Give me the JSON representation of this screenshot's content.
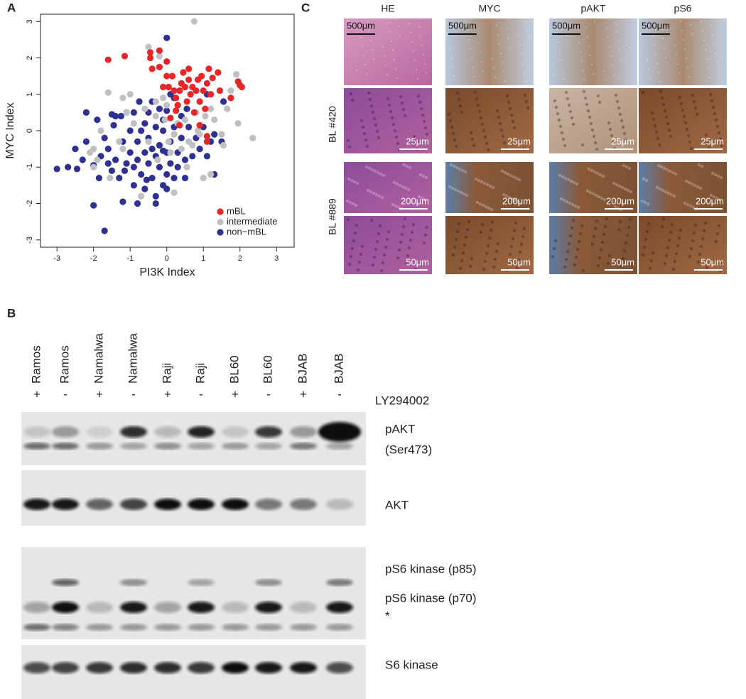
{
  "panel_labels": [
    "A",
    "B",
    "C"
  ],
  "chart_data": {
    "type": "scatter",
    "xlabel": "PI3K Index",
    "ylabel": "MYC Index",
    "xlim": [
      -3.45,
      3.48
    ],
    "ylim": [
      -3.2,
      3.2
    ],
    "xticks": [
      -3,
      -2,
      -1,
      0,
      1,
      2,
      3
    ],
    "yticks": [
      -3,
      -2,
      -1,
      0,
      1,
      2,
      3
    ],
    "legend": "lower-right",
    "series": [
      {
        "name": "mBL",
        "color": "#e8262a",
        "x": [
          -1.6,
          -1.15,
          -0.45,
          -0.4,
          -0.45,
          -0.2,
          -0.2,
          0.0,
          0.0,
          0.05,
          0.15,
          0.2,
          0.25,
          0.3,
          0.35,
          0.4,
          0.45,
          0.5,
          0.55,
          0.6,
          0.6,
          0.65,
          0.7,
          0.75,
          0.8,
          0.85,
          0.9,
          0.95,
          1.0,
          1.05,
          1.1,
          1.15,
          1.2,
          1.25,
          1.4,
          1.45,
          1.75,
          1.95,
          2.0,
          2.05,
          0.25,
          0.1,
          1.1,
          1.1,
          0.9,
          0.35,
          -0.1
        ],
        "values": [
          1.95,
          2.05,
          2.15,
          1.7,
          2.0,
          2.2,
          1.75,
          1.9,
          1.5,
          1.2,
          1.5,
          1.1,
          0.9,
          0.7,
          1.1,
          1.3,
          1.6,
          1.2,
          0.8,
          1.4,
          1.7,
          1.0,
          1.2,
          0.5,
          1.1,
          1.4,
          0.8,
          1.5,
          1.1,
          0.6,
          1.3,
          1.7,
          1.0,
          1.45,
          1.6,
          1.1,
          0.9,
          1.35,
          1.25,
          1.2,
          0.55,
          0.35,
          -0.3,
          -0.15,
          0.15,
          0.15,
          1.2
        ]
      },
      {
        "name": "intermediate",
        "color": "#c0c0c4",
        "x": [
          0.75,
          -0.5,
          -0.2,
          -0.3,
          -0.1,
          -1.0,
          -1.1,
          -1.6,
          -1.8,
          -2.0,
          -2.1,
          -1.9,
          -2.0,
          -1.55,
          -1.3,
          -1.2,
          -0.9,
          -0.6,
          -0.5,
          -0.3,
          0.0,
          0.05,
          0.1,
          0.2,
          0.3,
          0.4,
          0.5,
          0.55,
          0.6,
          0.7,
          0.8,
          0.9,
          1.0,
          1.05,
          1.2,
          1.3,
          1.5,
          1.55,
          1.65,
          1.75,
          1.9,
          1.95,
          2.35,
          -0.25,
          -0.7,
          0.2,
          -1.2,
          0.85,
          1.2,
          -0.05
        ],
        "values": [
          3.0,
          2.3,
          2.05,
          0.8,
          0.9,
          1.0,
          0.5,
          1.05,
          0.0,
          -0.5,
          -0.6,
          -0.8,
          -1.0,
          -1.3,
          -0.3,
          -0.5,
          0.2,
          0.6,
          -0.3,
          0.4,
          0.7,
          -0.3,
          -0.6,
          -0.1,
          0.2,
          -0.5,
          0.3,
          -1.0,
          -0.3,
          -0.4,
          0.5,
          -0.1,
          -1.3,
          0.4,
          -1.2,
          0.3,
          -0.1,
          -0.4,
          0.6,
          1.1,
          1.55,
          0.2,
          -0.2,
          -0.8,
          -1.8,
          -1.7,
          0.9,
          0.0,
          0.6,
          0.3
        ]
      },
      {
        "name": "non−mBL",
        "color": "#2e3192",
        "x": [
          0.0,
          -2.2,
          -1.9,
          -1.5,
          -1.4,
          -1.25,
          -1.1,
          -0.9,
          -0.6,
          -0.5,
          -0.4,
          -0.2,
          -0.1,
          0.0,
          0.1,
          0.2,
          -3.0,
          -2.7,
          -2.5,
          -2.3,
          -2.2,
          -2.0,
          -1.8,
          -1.7,
          -1.6,
          -1.5,
          -1.4,
          -1.3,
          -1.2,
          -1.1,
          -1.0,
          -1.0,
          -0.9,
          -0.9,
          -0.8,
          -0.8,
          -0.7,
          -0.7,
          -0.6,
          -0.6,
          -0.5,
          -0.5,
          -0.4,
          -0.4,
          -0.3,
          -0.3,
          -0.3,
          -0.2,
          -0.2,
          -0.1,
          -0.1,
          0.0,
          0.0,
          0.1,
          0.1,
          0.2,
          0.2,
          0.3,
          0.3,
          0.4,
          0.4,
          0.5,
          0.5,
          0.6,
          0.7,
          0.8,
          0.9,
          1.0,
          1.1,
          1.2,
          1.3,
          1.5,
          1.55,
          1.1,
          1.3,
          -2.0,
          -1.7,
          -1.2,
          -0.8,
          -0.3,
          0.0,
          -1.6,
          -1.15,
          -0.55,
          -1.45,
          -0.75,
          -0.1,
          0.55,
          -1.85,
          -2.45
        ],
        "values": [
          2.55,
          0.5,
          0.3,
          0.45,
          0.4,
          0.4,
          0.5,
          0.5,
          0.2,
          0.5,
          0.8,
          0.6,
          0.3,
          0.55,
          1.0,
          0.9,
          -1.05,
          -1.0,
          -0.5,
          -0.8,
          -0.3,
          -0.95,
          -0.7,
          -0.2,
          -0.5,
          -1.1,
          -0.8,
          -1.3,
          -0.3,
          -0.9,
          0.0,
          -0.6,
          -1.0,
          -1.5,
          -0.3,
          -0.8,
          -1.2,
          0.0,
          -0.6,
          -1.6,
          -0.2,
          -0.9,
          -1.3,
          -0.5,
          0.1,
          -0.7,
          -2.0,
          -1.0,
          -0.4,
          -1.5,
          0.0,
          -0.6,
          -1.2,
          -0.3,
          -0.9,
          -1.3,
          0.1,
          -0.6,
          -1.0,
          0.4,
          -0.2,
          -0.8,
          -1.3,
          0.1,
          -0.7,
          -0.2,
          -0.5,
          0.1,
          -0.7,
          -0.3,
          -1.2,
          -0.3,
          0.8,
          1.0,
          -0.1,
          -2.05,
          -2.75,
          -1.95,
          -2.0,
          -1.8,
          -1.6,
          -0.9,
          -1.1,
          -1.35,
          0.15,
          0.8,
          -0.55,
          0.6,
          -1.3,
          -1.05
        ]
      }
    ]
  },
  "histology": {
    "columns": [
      "HE",
      "MYC",
      "pAKT",
      "pS6"
    ],
    "rows": [
      "BL #420",
      "BL #889"
    ],
    "scale_bars": [
      [
        "500μm",
        "500μm",
        "500μm",
        "500μm"
      ],
      [
        "25μm",
        "25μm",
        "25μm",
        "25μm"
      ],
      [
        "200μm",
        "200μm",
        "200μm",
        "200μm"
      ],
      [
        "50μm",
        "50μm",
        "50μm",
        "50μm"
      ]
    ]
  },
  "western_blot": {
    "lanes": [
      "Ramos",
      "Ramos",
      "Namalwa",
      "Namalwa",
      "Raji",
      "Raji",
      "BL60",
      "BL60",
      "BJAB",
      "BJAB"
    ],
    "treatment": [
      "+",
      "-",
      "+",
      "-",
      "+",
      "-",
      "+",
      "-",
      "+",
      "-"
    ],
    "treatment_label": "LY294002",
    "band_labels": [
      "pAKT",
      "(Ser473)",
      "AKT",
      "pS6 kinase (p85)",
      "pS6 kinase (p70)",
      "*",
      "S6 kinase"
    ]
  }
}
